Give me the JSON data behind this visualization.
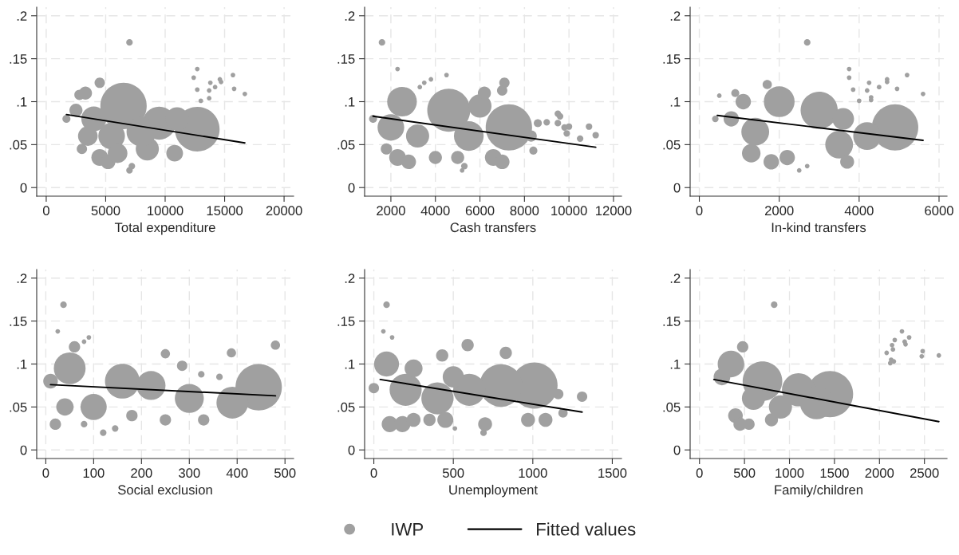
{
  "chart_data": [
    {
      "type": "bubble",
      "xlabel": "Total expenditure",
      "xlim": [
        -800,
        20800
      ],
      "xticks": [
        0,
        5000,
        10000,
        15000,
        20000
      ],
      "ylim": [
        -0.01,
        0.21
      ],
      "yticks": [
        0,
        {
          "value": 0.05,
          "label": ".05"
        },
        {
          "value": 0.1,
          "label": ".1"
        },
        {
          "value": 0.15,
          "label": ".15"
        },
        {
          "value": 0.2,
          "label": ".2"
        }
      ],
      "grid": true,
      "legend": "bottom",
      "series": [
        {
          "name": "IWP",
          "color": "#a0a0a0",
          "marker": "circle",
          "x": [
            7000,
            12700,
            12400,
            12700,
            13800,
            14200,
            13700,
            14600,
            14700,
            15700,
            15800,
            16700,
            13000,
            13700,
            1700,
            4500,
            2800,
            6500,
            12700,
            9500,
            4000,
            3500,
            4500,
            5200,
            8500,
            10800,
            3000,
            7200,
            7000,
            2500,
            5500,
            8000,
            11000,
            3300,
            6000
          ],
          "values": [
            0.169,
            0.138,
            0.128,
            0.114,
            0.122,
            0.117,
            0.113,
            0.126,
            0.123,
            0.131,
            0.115,
            0.109,
            0.101,
            0.104,
            0.08,
            0.122,
            0.108,
            0.095,
            0.068,
            0.075,
            0.08,
            0.06,
            0.035,
            0.03,
            0.045,
            0.04,
            0.045,
            0.025,
            0.02,
            0.09,
            0.06,
            0.065,
            0.08,
            0.11,
            0.04
          ],
          "sizes": [
            0.02,
            0.01,
            0.01,
            0.01,
            0.01,
            0.01,
            0.01,
            0.01,
            0.01,
            0.01,
            0.01,
            0.01,
            0.01,
            0.01,
            0.03,
            0.05,
            0.05,
            1,
            0.93,
            0.51,
            0.29,
            0.18,
            0.13,
            0.1,
            0.25,
            0.13,
            0.05,
            0.02,
            0.02,
            0.08,
            0.33,
            0.41,
            0.25,
            0.08,
            0.18
          ]
        },
        {
          "name": "Fitted values",
          "type": "line",
          "color": "#000000",
          "marker": "none",
          "x": [
            1700,
            16700
          ],
          "values": [
            0.085,
            0.052
          ]
        }
      ]
    },
    {
      "type": "bubble",
      "xlabel": "Cash transfers",
      "xlim": [
        820,
        12360
      ],
      "xticks": [
        2000,
        4000,
        6000,
        8000,
        10000,
        12000
      ],
      "ylim": [
        -0.01,
        0.21
      ],
      "yticks": [
        0,
        {
          "value": 0.05,
          "label": ".05"
        },
        {
          "value": 0.1,
          "label": ".1"
        },
        {
          "value": 0.15,
          "label": ".15"
        },
        {
          "value": 0.2,
          "label": ".2"
        }
      ],
      "grid": true,
      "series": [
        {
          "color": "#a0a0a0",
          "marker": "circle",
          "x": [
            1600,
            2300,
            3500,
            3800,
            4500,
            3300,
            7100,
            7000,
            1200,
            4600,
            7300,
            2500,
            2000,
            3200,
            5500,
            6000,
            2300,
            2800,
            4000,
            5000,
            6600,
            7000,
            5200,
            5300,
            8400,
            8300,
            8600,
            9000,
            9500,
            9600,
            9500,
            9800,
            10000,
            9900,
            10500,
            10900,
            11200,
            1800,
            6200
          ],
          "values": [
            0.169,
            0.138,
            0.122,
            0.126,
            0.131,
            0.117,
            0.122,
            0.113,
            0.08,
            0.09,
            0.07,
            0.1,
            0.07,
            0.06,
            0.06,
            0.095,
            0.035,
            0.03,
            0.035,
            0.035,
            0.035,
            0.03,
            0.02,
            0.025,
            0.043,
            0.06,
            0.075,
            0.076,
            0.086,
            0.083,
            0.075,
            0.07,
            0.071,
            0.063,
            0.057,
            0.071,
            0.061,
            0.045,
            0.11
          ],
          "sizes": [
            0.02,
            0.01,
            0.01,
            0.01,
            0.01,
            0.01,
            0.05,
            0.05,
            0.03,
            0.86,
            1,
            0.41,
            0.33,
            0.25,
            0.41,
            0.25,
            0.13,
            0.1,
            0.08,
            0.08,
            0.13,
            0.1,
            0.01,
            0.02,
            0.03,
            0.06,
            0.03,
            0.02,
            0.02,
            0.02,
            0.02,
            0.02,
            0.02,
            0.02,
            0.02,
            0.02,
            0.02,
            0.06,
            0.08
          ]
        },
        {
          "type": "line",
          "color": "#000000",
          "marker": "none",
          "x": [
            1200,
            11200
          ],
          "values": [
            0.083,
            0.047
          ]
        }
      ]
    },
    {
      "type": "bubble",
      "xlabel": "In-kind transfers",
      "xlim": [
        -230,
        6200
      ],
      "xticks": [
        0,
        2000,
        4000,
        6000
      ],
      "ylim": [
        -0.01,
        0.21
      ],
      "yticks": [
        0,
        {
          "value": 0.05,
          "label": ".05"
        },
        {
          "value": 0.1,
          "label": ".1"
        },
        {
          "value": 0.15,
          "label": ".15"
        },
        {
          "value": 0.2,
          "label": ".2"
        }
      ],
      "grid": true,
      "series": [
        {
          "color": "#a0a0a0",
          "marker": "circle",
          "x": [
            2700,
            3750,
            3750,
            3850,
            4000,
            4200,
            4250,
            4300,
            4300,
            4500,
            4700,
            4700,
            4950,
            5200,
            5600,
            500,
            2500,
            2700,
            3000,
            4900,
            2000,
            1400,
            1300,
            1800,
            3500,
            4200,
            800,
            900,
            1700,
            2200,
            3700,
            400,
            1100,
            3600
          ],
          "values": [
            0.169,
            0.138,
            0.128,
            0.114,
            0.101,
            0.113,
            0.122,
            0.105,
            0.102,
            0.117,
            0.126,
            0.123,
            0.115,
            0.131,
            0.109,
            0.107,
            0.02,
            0.025,
            0.09,
            0.07,
            0.1,
            0.065,
            0.04,
            0.03,
            0.05,
            0.06,
            0.08,
            0.11,
            0.12,
            0.035,
            0.03,
            0.08,
            0.1,
            0.08
          ],
          "sizes": [
            0.02,
            0.01,
            0.01,
            0.01,
            0.01,
            0.01,
            0.01,
            0.01,
            0.01,
            0.01,
            0.01,
            0.01,
            0.01,
            0.01,
            0.01,
            0.01,
            0.01,
            0.01,
            0.64,
            1,
            0.44,
            0.36,
            0.16,
            0.11,
            0.36,
            0.36,
            0.11,
            0.03,
            0.04,
            0.11,
            0.09,
            0.02,
            0.11,
            0.22
          ]
        },
        {
          "type": "line",
          "color": "#000000",
          "marker": "none",
          "x": [
            450,
            5600
          ],
          "values": [
            0.084,
            0.055
          ]
        }
      ]
    },
    {
      "type": "bubble",
      "xlabel": "Social exclusion",
      "xlim": [
        -19,
        518
      ],
      "xticks": [
        0,
        100,
        200,
        300,
        400,
        500
      ],
      "ylim": [
        -0.01,
        0.21
      ],
      "yticks": [
        0,
        {
          "value": 0.05,
          "label": ".05"
        },
        {
          "value": 0.1,
          "label": ".1"
        },
        {
          "value": 0.15,
          "label": ".15"
        },
        {
          "value": 0.2,
          "label": ".2"
        }
      ],
      "grid": true,
      "series": [
        {
          "color": "#a0a0a0",
          "marker": "circle",
          "x": [
            37,
            25,
            80,
            90,
            480,
            388,
            363,
            325,
            120,
            145,
            250,
            285,
            445,
            160,
            50,
            390,
            10,
            20,
            100,
            220,
            300,
            330,
            250,
            180,
            80,
            60,
            40
          ],
          "values": [
            0.169,
            0.138,
            0.126,
            0.131,
            0.122,
            0.113,
            0.085,
            0.088,
            0.02,
            0.025,
            0.112,
            0.098,
            0.073,
            0.08,
            0.095,
            0.055,
            0.08,
            0.03,
            0.05,
            0.075,
            0.06,
            0.035,
            0.035,
            0.04,
            0.03,
            0.12,
            0.05
          ],
          "sizes": [
            0.02,
            0.01,
            0.01,
            0.01,
            0.04,
            0.04,
            0.02,
            0.02,
            0.02,
            0.02,
            0.04,
            0.05,
            1,
            0.56,
            0.47,
            0.47,
            0.1,
            0.06,
            0.32,
            0.39,
            0.39,
            0.06,
            0.06,
            0.06,
            0.02,
            0.06,
            0.14
          ]
        },
        {
          "type": "line",
          "color": "#000000",
          "marker": "none",
          "x": [
            10,
            480
          ],
          "values": [
            0.076,
            0.063
          ]
        }
      ]
    },
    {
      "type": "bubble",
      "xlabel": "Unemployment",
      "xlim": [
        -58,
        1558
      ],
      "xticks": [
        0,
        500,
        1000,
        1500
      ],
      "ylim": [
        -0.01,
        0.21
      ],
      "yticks": [
        0,
        {
          "value": 0.05,
          "label": ".05"
        },
        {
          "value": 0.1,
          "label": ".1"
        },
        {
          "value": 0.15,
          "label": ".15"
        },
        {
          "value": 0.2,
          "label": ".2"
        }
      ],
      "grid": true,
      "series": [
        {
          "color": "#a0a0a0",
          "marker": "circle",
          "x": [
            80,
            60,
            115,
            590,
            830,
            430,
            1310,
            1160,
            1190,
            690,
            510,
            1010,
            800,
            80,
            200,
            400,
            600,
            100,
            180,
            250,
            350,
            450,
            700,
            970,
            1080,
            0,
            250,
            500
          ],
          "values": [
            0.169,
            0.138,
            0.131,
            0.122,
            0.113,
            0.11,
            0.062,
            0.065,
            0.043,
            0.02,
            0.025,
            0.075,
            0.075,
            0.1,
            0.07,
            0.06,
            0.07,
            0.03,
            0.03,
            0.035,
            0.035,
            0.035,
            0.03,
            0.035,
            0.035,
            0.072,
            0.095,
            0.085
          ],
          "sizes": [
            0.02,
            0.01,
            0.01,
            0.07,
            0.07,
            0.07,
            0.05,
            0.05,
            0.04,
            0.02,
            0.01,
            1,
            0.85,
            0.29,
            0.48,
            0.48,
            0.48,
            0.12,
            0.12,
            0.09,
            0.07,
            0.12,
            0.09,
            0.09,
            0.09,
            0.05,
            0.15,
            0.21
          ]
        },
        {
          "type": "line",
          "color": "#000000",
          "marker": "none",
          "x": [
            40,
            1310
          ],
          "values": [
            0.082,
            0.044
          ]
        }
      ]
    },
    {
      "type": "bubble",
      "xlabel": "Family/children",
      "xlim": [
        -104,
        2751
      ],
      "xticks": [
        0,
        500,
        1000,
        1500,
        2000,
        2500
      ],
      "ylim": [
        -0.01,
        0.21
      ],
      "yticks": [
        0,
        {
          "value": 0.05,
          "label": ".05"
        },
        {
          "value": 0.1,
          "label": ".1"
        },
        {
          "value": 0.15,
          "label": ".15"
        },
        {
          "value": 0.2,
          "label": ".2"
        }
      ],
      "grid": true,
      "series": [
        {
          "color": "#a0a0a0",
          "marker": "circle",
          "x": [
            830,
            2080,
            2120,
            2130,
            2160,
            2140,
            2150,
            2170,
            2250,
            2280,
            2290,
            2330,
            2470,
            2480,
            2660,
            1450,
            700,
            1100,
            1300,
            350,
            250,
            400,
            450,
            550,
            800,
            900,
            480,
            600
          ],
          "values": [
            0.169,
            0.113,
            0.101,
            0.105,
            0.103,
            0.122,
            0.117,
            0.128,
            0.138,
            0.126,
            0.123,
            0.131,
            0.109,
            0.115,
            0.11,
            0.065,
            0.08,
            0.07,
            0.055,
            0.1,
            0.085,
            0.04,
            0.03,
            0.03,
            0.035,
            0.05,
            0.12,
            0.06
          ],
          "sizes": [
            0.02,
            0.01,
            0.01,
            0.01,
            0.01,
            0.01,
            0.01,
            0.01,
            0.01,
            0.01,
            0.01,
            0.01,
            0.01,
            0.01,
            0.01,
            1,
            0.73,
            0.51,
            0.51,
            0.33,
            0.13,
            0.1,
            0.08,
            0.06,
            0.08,
            0.25,
            0.06,
            0.25
          ]
        },
        {
          "type": "line",
          "color": "#000000",
          "marker": "none",
          "x": [
            160,
            2660
          ],
          "values": [
            0.082,
            0.033
          ]
        }
      ]
    }
  ]
}
